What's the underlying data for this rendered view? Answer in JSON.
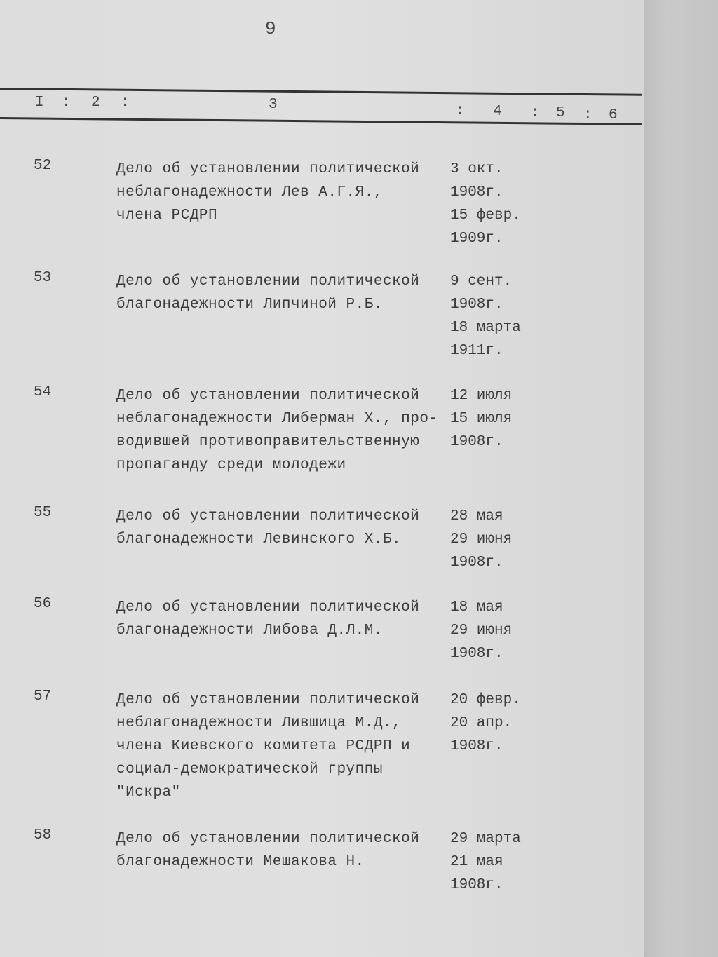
{
  "page_number": "9",
  "header": {
    "cols": [
      "I",
      "2",
      "3",
      "4",
      "5",
      "6"
    ]
  },
  "entries": [
    {
      "num": "52",
      "desc": [
        "Дело об установлении политической",
        "неблагонадежности Лев А.Г.Я.,",
        "члена РСДРП"
      ],
      "dates": [
        "3 окт.",
        "1908г.",
        "15 февр.",
        "1909г."
      ]
    },
    {
      "num": "53",
      "desc": [
        "Дело об установлении политической",
        "благонадежности Липчиной Р.Б."
      ],
      "dates": [
        "9 сент.",
        "1908г.",
        "18 марта",
        "1911г."
      ]
    },
    {
      "num": "54",
      "desc": [
        "Дело об установлении политической",
        "неблагонадежности Либерман Х., про-",
        "водившей противоправительственную",
        "пропаганду среди молодежи"
      ],
      "dates": [
        "12 июля",
        "15 июля",
        "1908г."
      ]
    },
    {
      "num": "55",
      "desc": [
        "Дело об установлении политической",
        "благонадежности Левинского Х.Б."
      ],
      "dates": [
        "28 мая",
        "29 июня",
        "1908г."
      ]
    },
    {
      "num": "56",
      "desc": [
        "Дело об установлении политической",
        "благонадежности Либова Д.Л.М."
      ],
      "dates": [
        "18 мая",
        "29 июня",
        "1908г."
      ]
    },
    {
      "num": "57",
      "desc": [
        "Дело об установлении политической",
        "неблагонадежности Лившица М.Д.,",
        "члена Киевского комитета РСДРП и",
        "социал-демократической группы",
        "\"Искра\""
      ],
      "dates": [
        "20 февр.",
        "20 апр.",
        "1908г."
      ]
    },
    {
      "num": "58",
      "desc": [
        "Дело об установлении политической",
        "благонадежности Мешакова Н."
      ],
      "dates": [
        "29 марта",
        "21 мая",
        "1908г."
      ]
    }
  ]
}
